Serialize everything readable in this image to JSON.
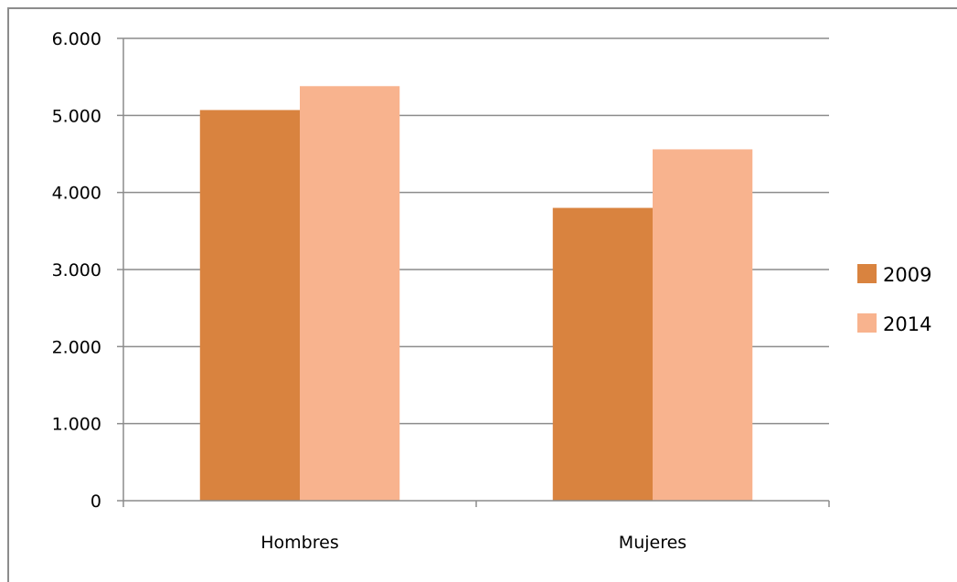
{
  "chart_data": {
    "type": "bar",
    "categories": [
      "Hombres",
      "Mujeres"
    ],
    "series": [
      {
        "name": "2009",
        "values": [
          5070,
          3800
        ],
        "color": "#d9833f"
      },
      {
        "name": "2014",
        "values": [
          5380,
          4560
        ],
        "color": "#f8b38e"
      }
    ],
    "yticks": [
      "0",
      "1.000",
      "2.000",
      "3.000",
      "4.000",
      "5.000",
      "6.000"
    ],
    "ylim": [
      0,
      6000
    ],
    "grid": true,
    "legend_position": "right",
    "title": "",
    "xlabel": "",
    "ylabel": ""
  },
  "colors": {
    "gridline": "#8c8c8c",
    "axis": "#8c8c8c",
    "frame": "#8c8c8c"
  }
}
